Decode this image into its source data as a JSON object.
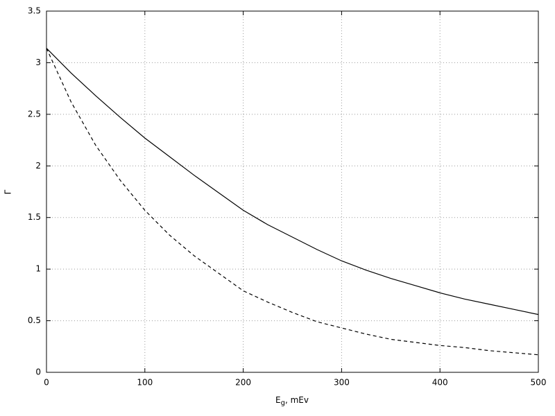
{
  "chart_data": {
    "type": "line",
    "x_label": [
      "E",
      "g",
      ", mEv"
    ],
    "y_label": "Γ",
    "x": [
      0,
      25,
      50,
      75,
      100,
      125,
      150,
      175,
      200,
      225,
      250,
      275,
      300,
      325,
      350,
      375,
      400,
      425,
      450,
      475,
      500
    ],
    "series": [
      {
        "color": "#000000",
        "style": "solid",
        "values": [
          3.14,
          2.9,
          2.68,
          2.47,
          2.27,
          2.09,
          1.91,
          1.74,
          1.57,
          1.43,
          1.31,
          1.19,
          1.08,
          0.99,
          0.91,
          0.84,
          0.77,
          0.71,
          0.66,
          0.61,
          0.56
        ]
      },
      {
        "color": "#000000",
        "style": "dashed",
        "values": [
          3.14,
          2.62,
          2.2,
          1.86,
          1.57,
          1.33,
          1.13,
          0.96,
          0.79,
          0.68,
          0.58,
          0.49,
          0.43,
          0.37,
          0.32,
          0.29,
          0.26,
          0.24,
          0.21,
          0.19,
          0.17
        ]
      }
    ],
    "xlim": [
      0,
      500
    ],
    "xticks": [
      0,
      100,
      200,
      300,
      400,
      500
    ],
    "ylim": [
      0,
      3.5
    ],
    "yticks": [
      0,
      0.5,
      1,
      1.5,
      2,
      2.5,
      3,
      3.5
    ],
    "grid": true
  }
}
